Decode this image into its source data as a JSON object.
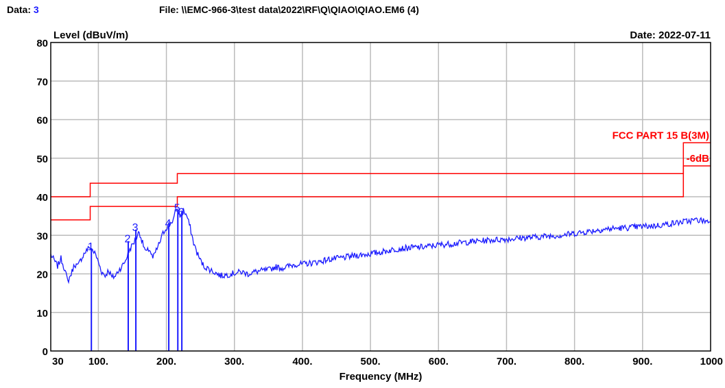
{
  "header": {
    "data_label": "Data:",
    "data_value": "3",
    "file_text": "File: \\\\EMC-966-3\\test data\\2022\\RF\\Q\\QIAO\\QIAO.EM6  (4)",
    "date_text": "Date: 2022-07-11"
  },
  "colors": {
    "trace": "#1a1aff",
    "limit": "#ff0000",
    "grid": "#bbbbbb",
    "frame": "#000000"
  },
  "chart_data": {
    "type": "line",
    "ylabel": "Level (dBuV/m)",
    "xlabel": "Frequency (MHz)",
    "xlim": [
      30,
      1000
    ],
    "ylim": [
      0,
      80
    ],
    "x_ticks": [
      30,
      100,
      200,
      300,
      400,
      500,
      600,
      700,
      800,
      900,
      1000
    ],
    "x_tick_labels": [
      "30",
      "100.",
      "200.",
      "300.",
      "400.",
      "500.",
      "600.",
      "700.",
      "800.",
      "900.",
      "1000"
    ],
    "y_ticks": [
      0,
      10,
      20,
      30,
      40,
      50,
      60,
      70,
      80
    ],
    "y_tick_labels": [
      "0",
      "10",
      "20",
      "30",
      "40",
      "50",
      "60",
      "70",
      "80"
    ],
    "grid": true,
    "limit_lines": [
      {
        "name": "FCC PART 15 B(3M)",
        "points": [
          [
            30,
            40
          ],
          [
            88,
            40
          ],
          [
            88,
            43.5
          ],
          [
            216,
            43.5
          ],
          [
            216,
            46
          ],
          [
            960,
            46
          ],
          [
            960,
            54
          ],
          [
            1000,
            54
          ]
        ]
      },
      {
        "name": "-6dB",
        "points": [
          [
            30,
            34
          ],
          [
            88,
            34
          ],
          [
            88,
            37.5
          ],
          [
            216,
            37.5
          ],
          [
            216,
            40
          ],
          [
            960,
            40
          ],
          [
            960,
            48
          ],
          [
            1000,
            48
          ]
        ]
      }
    ],
    "series": [
      {
        "x": [
          30,
          35,
          40,
          45,
          50,
          55,
          60,
          65,
          70,
          75,
          80,
          85,
          88,
          92,
          96,
          100,
          105,
          110,
          115,
          120,
          125,
          130,
          135,
          140,
          145,
          150,
          155,
          160,
          165,
          170,
          175,
          180,
          185,
          190,
          195,
          200,
          205,
          210,
          215,
          220,
          225,
          230,
          235,
          240,
          245,
          250,
          255,
          260,
          265,
          270,
          275,
          280,
          290,
          300,
          310,
          320,
          330,
          340,
          350,
          360,
          370,
          380,
          390,
          400,
          420,
          440,
          460,
          480,
          500,
          520,
          540,
          560,
          580,
          600,
          620,
          640,
          660,
          680,
          700,
          720,
          740,
          760,
          780,
          800,
          820,
          840,
          860,
          880,
          900,
          920,
          940,
          960,
          980,
          1000
        ],
        "values": [
          25,
          23.5,
          22,
          24,
          21.5,
          18,
          20,
          22.5,
          22,
          24,
          25.5,
          26.5,
          27,
          26,
          25,
          23,
          20.5,
          19.5,
          21,
          19,
          19.5,
          21,
          22,
          23.5,
          26,
          27.5,
          29,
          31,
          28,
          25.5,
          26.5,
          24,
          26,
          28,
          30.5,
          32,
          33,
          34,
          37,
          35,
          36.5,
          35,
          32,
          28,
          25.5,
          23.5,
          22,
          21.5,
          21,
          20.5,
          20,
          19.5,
          19.8,
          20.2,
          20.5,
          20,
          20.5,
          20.8,
          21,
          21.8,
          21.5,
          22,
          22.5,
          22.5,
          23,
          23.8,
          24.2,
          24.8,
          25.2,
          25.8,
          26.5,
          26.8,
          27,
          27.5,
          27.8,
          28.2,
          28.5,
          28.8,
          29,
          29.3,
          29.5,
          29.8,
          30,
          30.5,
          31,
          31.5,
          31.8,
          32,
          32.3,
          32.5,
          33,
          33.5,
          34,
          33.5
        ]
      }
    ],
    "markers": [
      {
        "label": "1",
        "x": 89.7,
        "y": 26.5
      },
      {
        "label": "2",
        "x": 143.9,
        "y": 28.5
      },
      {
        "label": "3",
        "x": 155.1,
        "y": 31.5
      },
      {
        "label": "4",
        "x": 203.5,
        "y": 32.5
      },
      {
        "label": "5",
        "x": 216.8,
        "y": 36.5
      },
      {
        "label": "6",
        "x": 222.7,
        "y": 35.5
      }
    ]
  }
}
